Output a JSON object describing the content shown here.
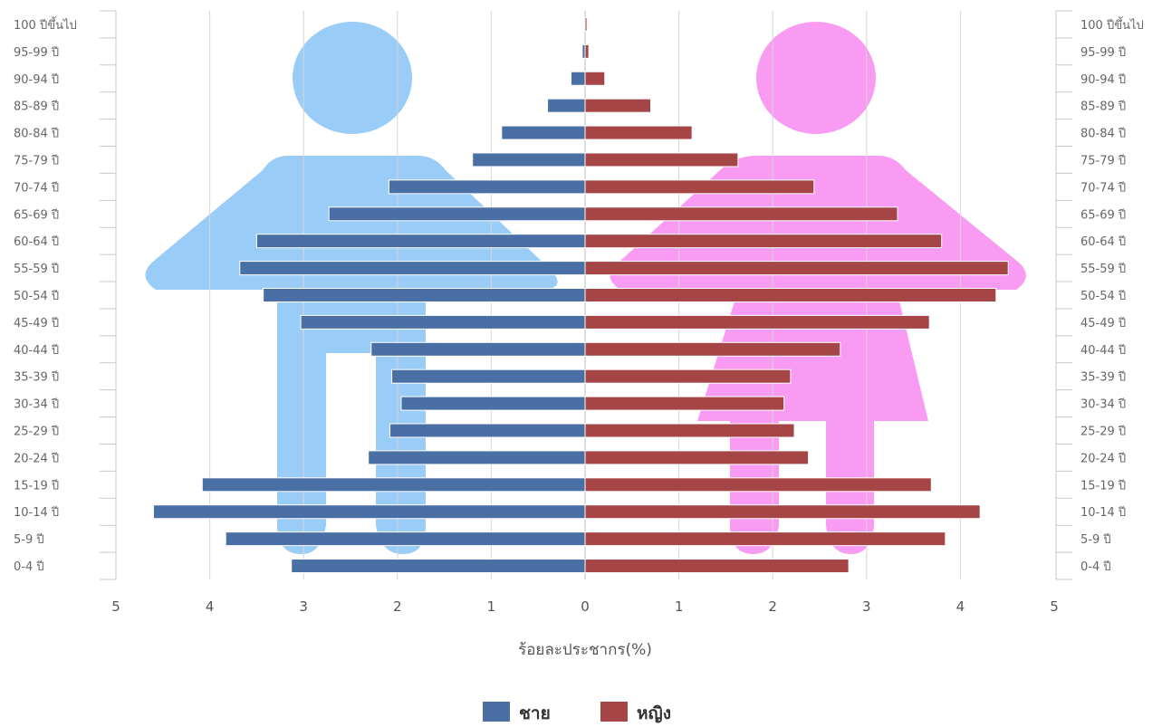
{
  "chart_data": {
    "type": "bar",
    "orientation": "horizontal",
    "categories": [
      "0-4 ปี",
      "5-9 ปี",
      "10-14 ปี",
      "15-19 ปี",
      "20-24 ปี",
      "25-29 ปี",
      "30-34 ปี",
      "35-39 ปี",
      "40-44 ปี",
      "45-49 ปี",
      "50-54 ปี",
      "55-59 ปี",
      "60-64 ปี",
      "65-69 ปี",
      "70-74 ปี",
      "75-79 ปี",
      "80-84 ปี",
      "85-89 ปี",
      "90-94 ปี",
      "95-99 ปี",
      "100 ปีขึ้นไป"
    ],
    "series": [
      {
        "name": "ชาย",
        "color": "#4a6fa5",
        "side": "left",
        "values": [
          3.13,
          3.83,
          4.6,
          4.08,
          2.31,
          2.08,
          1.96,
          2.06,
          2.28,
          3.03,
          3.43,
          3.68,
          3.5,
          2.73,
          2.09,
          1.2,
          0.89,
          0.4,
          0.15,
          0.03,
          0.01
        ]
      },
      {
        "name": "หญิง",
        "color": "#a64545",
        "side": "right",
        "values": [
          2.81,
          3.84,
          4.21,
          3.69,
          2.38,
          2.23,
          2.12,
          2.19,
          2.72,
          3.67,
          4.38,
          4.51,
          3.8,
          3.33,
          2.44,
          1.63,
          1.14,
          0.7,
          0.21,
          0.04,
          0.02
        ]
      }
    ],
    "x_ticks": [
      "5",
      "4",
      "3",
      "2",
      "1",
      "0",
      "1",
      "2",
      "3",
      "4",
      "5"
    ],
    "xlim": [
      -5,
      5
    ],
    "xlabel": "ร้อยละประชากร(%)",
    "grid": true,
    "legend_position": "bottom-center",
    "background_art": [
      "male-figure-icon",
      "female-figure-icon"
    ],
    "male_figure_color": "#99ccf7",
    "female_figure_color": "#f99bf2"
  }
}
